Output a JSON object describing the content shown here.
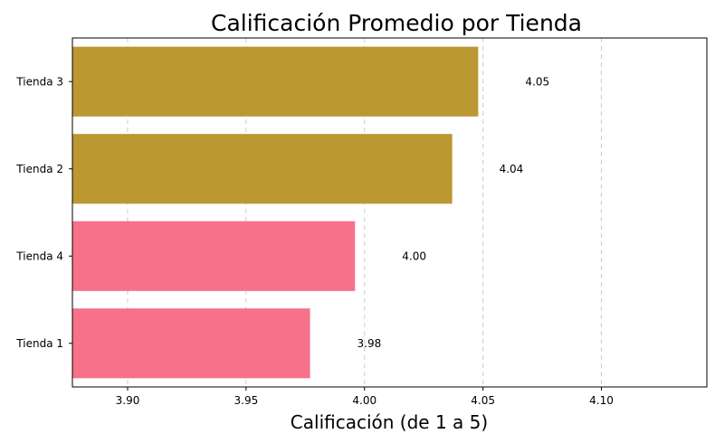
{
  "chart_data": {
    "type": "bar",
    "orientation": "horizontal",
    "title": "Calificación Promedio por Tienda",
    "xlabel": "Calificación (de 1 a 5)",
    "ylabel": "",
    "categories": [
      "Tienda 1",
      "Tienda 4",
      "Tienda 2",
      "Tienda 3"
    ],
    "values": [
      3.977,
      3.996,
      4.037,
      4.048
    ],
    "data_labels": [
      "3.98",
      "4.00",
      "4.04",
      "4.05"
    ],
    "colors": [
      "#f7718a",
      "#f7718a",
      "#bb9832",
      "#bb9832"
    ],
    "xlim": [
      3.8767,
      4.1445
    ],
    "xticks": [
      3.9,
      3.95,
      4.0,
      4.05,
      4.1
    ],
    "xtick_labels": [
      "3.90",
      "3.95",
      "4.00",
      "4.05",
      "4.10"
    ],
    "grid": "x-dashed"
  }
}
